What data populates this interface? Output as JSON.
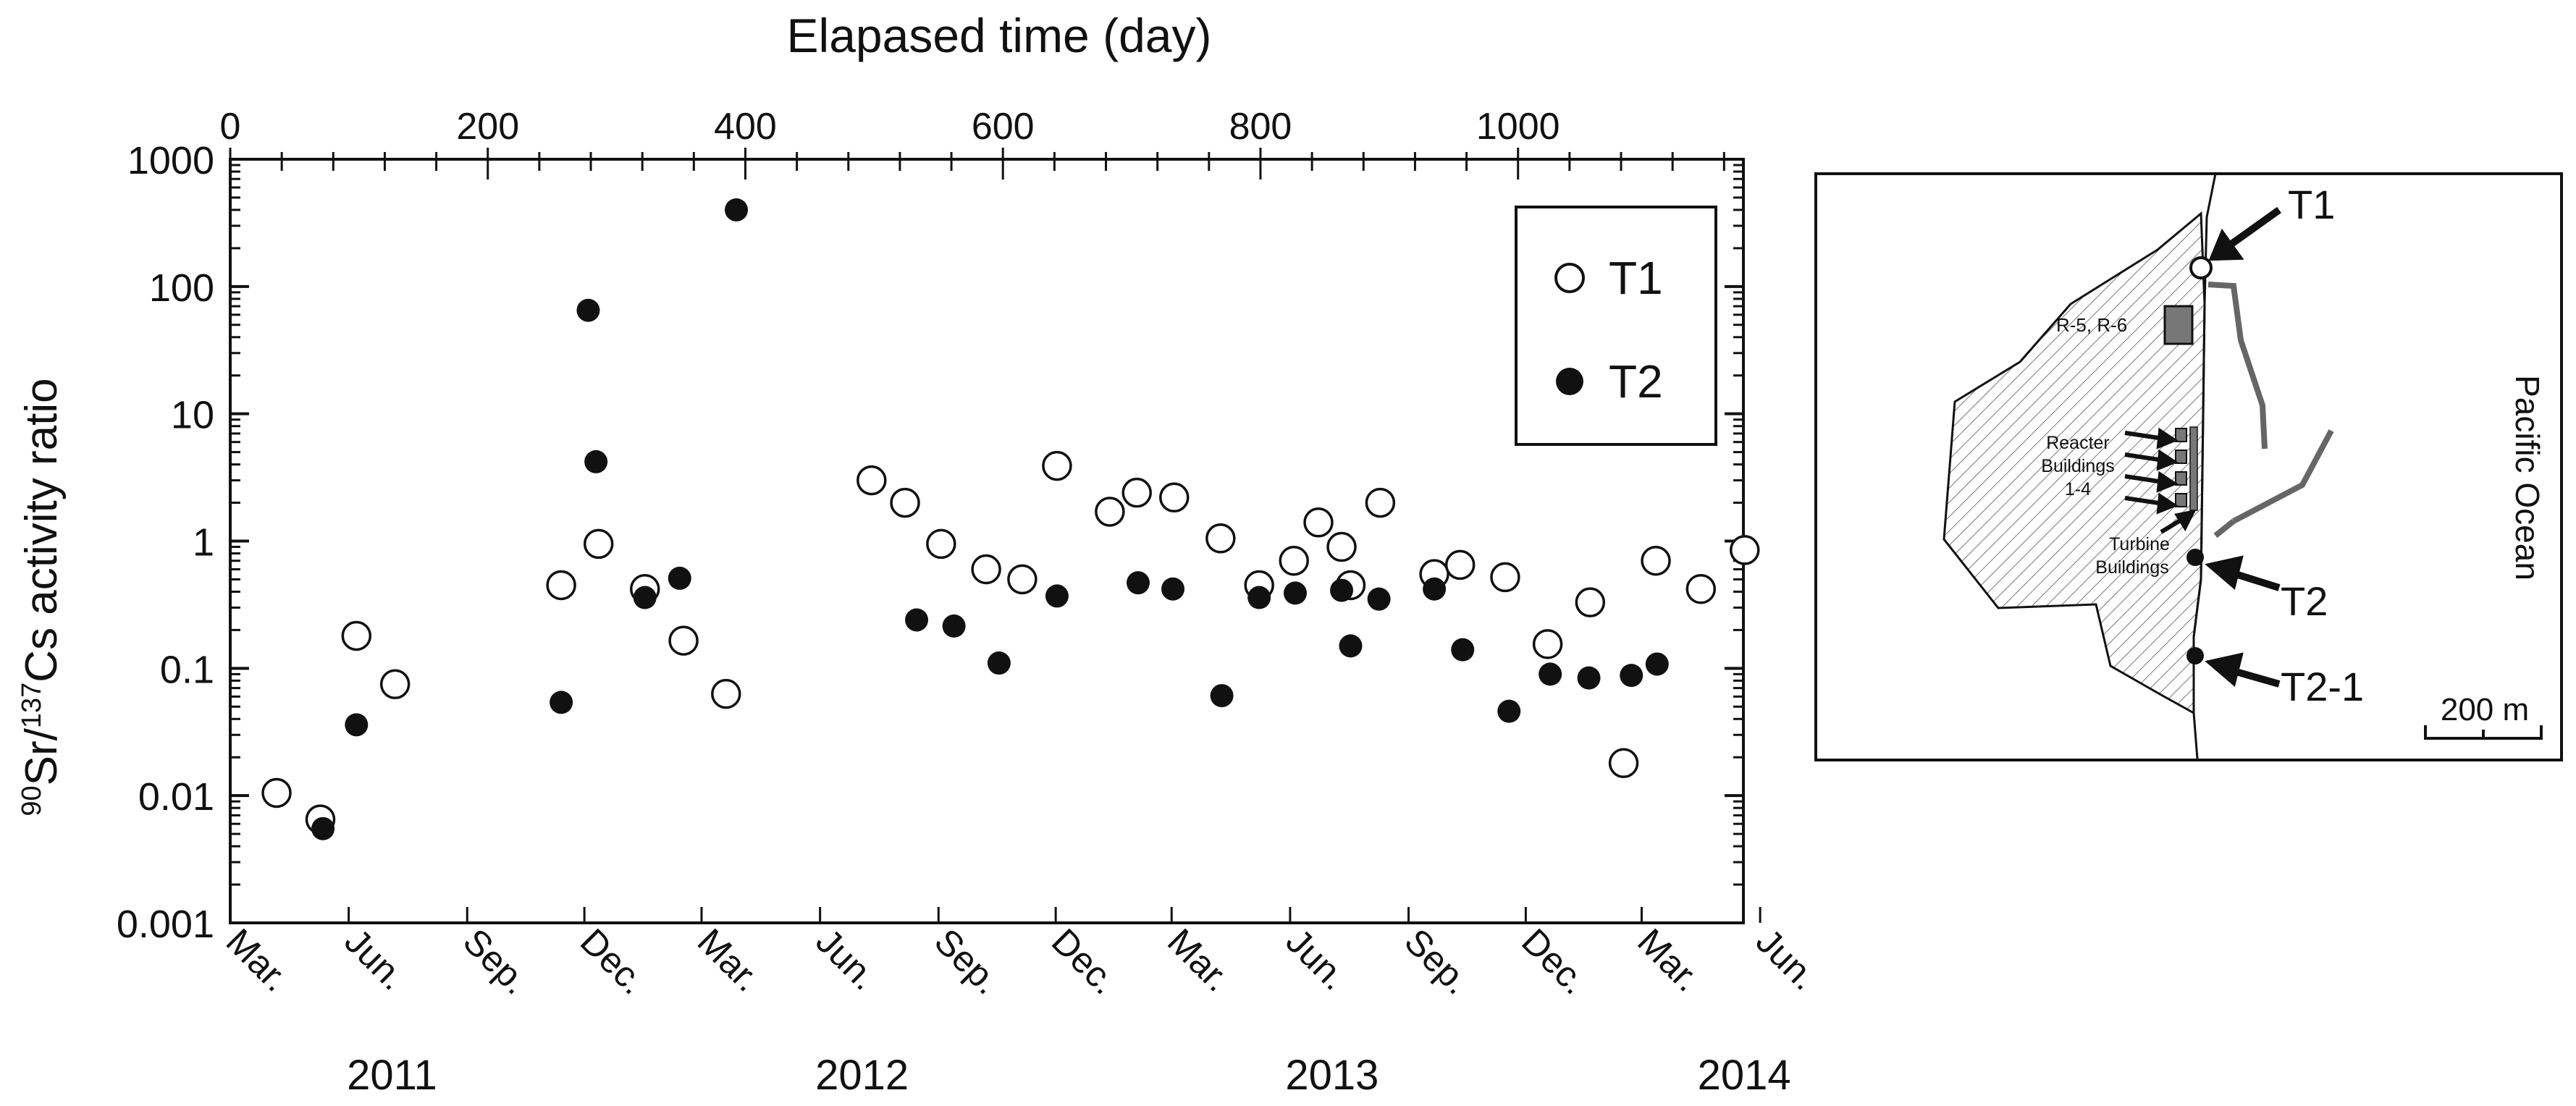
{
  "chart_data": {
    "type": "scatter",
    "title": "",
    "top_axis": {
      "label": "Elapased time (day)",
      "range": [
        0,
        1175
      ],
      "ticks": [
        0,
        200,
        400,
        600,
        800,
        1000
      ],
      "tick_labels": [
        "0",
        "200",
        "400",
        "600",
        "800",
        "1000"
      ]
    },
    "y_axis": {
      "label_prefix_sup": "90",
      "label_mid1": "Sr/",
      "label_mid_sup": "137",
      "label_suffix": "Cs activity ratio",
      "scale": "log",
      "range": [
        0.001,
        1000
      ],
      "ticks": [
        0.001,
        0.01,
        0.1,
        1,
        10,
        100,
        1000
      ],
      "tick_labels": [
        "0.001",
        "0.01",
        "0.1",
        "1",
        "10",
        "100",
        "1000"
      ]
    },
    "bottom_axis": {
      "month_labels": [
        "Mar.",
        "Jun.",
        "Sep.",
        "Dec.",
        "Mar.",
        "Jun.",
        "Sep.",
        "Dec.",
        "Mar.",
        "Jun.",
        "Sep.",
        "Dec.",
        "Mar.",
        "Jun."
      ],
      "month_days": [
        0,
        92,
        184,
        275,
        366,
        458,
        550,
        641,
        731,
        823,
        915,
        1006,
        1096,
        1188
      ],
      "year_labels": [
        "2011",
        "2012",
        "2013",
        "2014"
      ],
      "year_days": [
        120,
        485,
        850,
        1170
      ]
    },
    "legend": {
      "position": "top-right",
      "entries": [
        {
          "label": "T1",
          "marker": "open-circle"
        },
        {
          "label": "T2",
          "marker": "filled-circle"
        }
      ]
    },
    "series": [
      {
        "name": "T1",
        "marker": "open-circle",
        "points": [
          [
            36,
            0.0105
          ],
          [
            70,
            0.0065
          ],
          [
            98,
            0.18
          ],
          [
            128,
            0.075
          ],
          [
            257,
            0.45
          ],
          [
            286,
            0.95
          ],
          [
            322,
            0.42
          ],
          [
            352,
            0.165
          ],
          [
            385,
            0.063
          ],
          [
            498,
            3.0
          ],
          [
            524,
            2.0
          ],
          [
            552,
            0.95
          ],
          [
            587,
            0.6
          ],
          [
            615,
            0.5
          ],
          [
            642,
            3.9
          ],
          [
            683,
            1.7
          ],
          [
            704,
            2.4
          ],
          [
            733,
            2.2
          ],
          [
            769,
            1.05
          ],
          [
            799,
            0.45
          ],
          [
            826,
            0.7
          ],
          [
            845,
            1.4
          ],
          [
            863,
            0.9
          ],
          [
            870,
            0.45
          ],
          [
            893,
            2.0
          ],
          [
            935,
            0.55
          ],
          [
            955,
            0.65
          ],
          [
            990,
            0.52
          ],
          [
            1023,
            0.155
          ],
          [
            1056,
            0.33
          ],
          [
            1082,
            0.018
          ],
          [
            1107,
            0.7
          ],
          [
            1142,
            0.42
          ],
          [
            1176,
            0.85
          ]
        ]
      },
      {
        "name": "T2",
        "marker": "filled-circle",
        "points": [
          [
            72,
            0.0055
          ],
          [
            98,
            0.036
          ],
          [
            257,
            0.054
          ],
          [
            278,
            65
          ],
          [
            284,
            4.2
          ],
          [
            322,
            0.36
          ],
          [
            349,
            0.51
          ],
          [
            393,
            400
          ],
          [
            533,
            0.24
          ],
          [
            562,
            0.215
          ],
          [
            597,
            0.11
          ],
          [
            642,
            0.37
          ],
          [
            705,
            0.47
          ],
          [
            732,
            0.42
          ],
          [
            770,
            0.061
          ],
          [
            799,
            0.36
          ],
          [
            827,
            0.39
          ],
          [
            863,
            0.41
          ],
          [
            870,
            0.15
          ],
          [
            892,
            0.35
          ],
          [
            935,
            0.42
          ],
          [
            957,
            0.14
          ],
          [
            993,
            0.046
          ],
          [
            1025,
            0.09
          ],
          [
            1055,
            0.084
          ],
          [
            1088,
            0.088
          ],
          [
            1108,
            0.108
          ]
        ]
      }
    ]
  },
  "map": {
    "labels": {
      "t1": "T1",
      "t2": "T2",
      "t2_1": "T2-1",
      "r56": "R-5, R-6",
      "reactor_line1": "Reacter",
      "reactor_line2": "Buildings",
      "reactor_line3": "1-4",
      "turbine_line1": "Turbine",
      "turbine_line2": "Buildings",
      "ocean": "Pacific Ocean",
      "scale": "200 m"
    }
  }
}
